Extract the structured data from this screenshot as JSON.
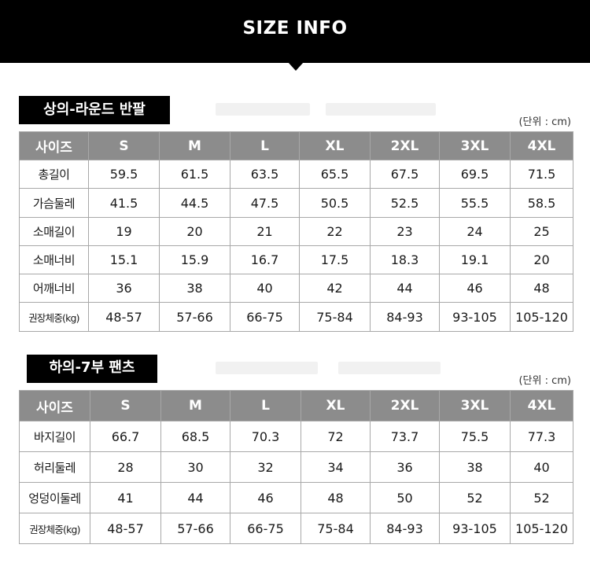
{
  "header": {
    "title": "SIZE INFO"
  },
  "sections": [
    {
      "label": "상의-라운드 반팔",
      "unit": "(단위 : cm)",
      "columns": [
        "사이즈",
        "S",
        "M",
        "L",
        "XL",
        "2XL",
        "3XL",
        "4XL"
      ],
      "rows": [
        {
          "label": "총길이",
          "values": [
            "59.5",
            "61.5",
            "63.5",
            "65.5",
            "67.5",
            "69.5",
            "71.5"
          ]
        },
        {
          "label": "가슴둘레",
          "values": [
            "41.5",
            "44.5",
            "47.5",
            "50.5",
            "52.5",
            "55.5",
            "58.5"
          ]
        },
        {
          "label": "소매길이",
          "values": [
            "19",
            "20",
            "21",
            "22",
            "23",
            "24",
            "25"
          ]
        },
        {
          "label": "소매너비",
          "values": [
            "15.1",
            "15.9",
            "16.7",
            "17.5",
            "18.3",
            "19.1",
            "20"
          ]
        },
        {
          "label": "어깨너비",
          "values": [
            "36",
            "38",
            "40",
            "42",
            "44",
            "46",
            "48"
          ]
        },
        {
          "label": "권장체중(kg)",
          "values": [
            "48-57",
            "57-66",
            "66-75",
            "75-84",
            "84-93",
            "93-105",
            "105-120"
          ]
        }
      ]
    },
    {
      "label": "하의-7부 팬츠",
      "unit": "(단위 : cm)",
      "columns": [
        "사이즈",
        "S",
        "M",
        "L",
        "XL",
        "2XL",
        "3XL",
        "4XL"
      ],
      "rows": [
        {
          "label": "바지길이",
          "values": [
            "66.7",
            "68.5",
            "70.3",
            "72",
            "73.7",
            "75.5",
            "77.3"
          ]
        },
        {
          "label": "허리둘레",
          "values": [
            "28",
            "30",
            "32",
            "34",
            "36",
            "38",
            "40"
          ]
        },
        {
          "label": "엉덩이둘레",
          "values": [
            "41",
            "44",
            "46",
            "48",
            "50",
            "52",
            "52"
          ]
        },
        {
          "label": "권장체중(kg)",
          "values": [
            "48-57",
            "57-66",
            "66-75",
            "75-84",
            "84-93",
            "93-105",
            "105-120"
          ]
        }
      ]
    }
  ]
}
